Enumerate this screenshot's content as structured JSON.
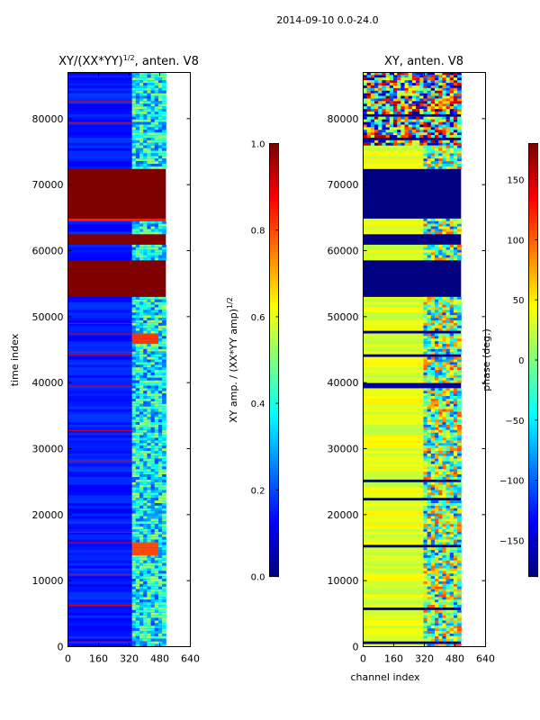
{
  "figure": {
    "suptitle": "2014-09-10 0.0-24.0"
  },
  "chart_data": [
    {
      "type": "heatmap",
      "title_main": "XY/(XX*YY)",
      "title_sup": "1/2",
      "title_tail": ", anten. V8",
      "xlabel": "",
      "ylabel": "time index",
      "xlim": [
        0,
        640
      ],
      "ylim": [
        0,
        87000
      ],
      "xticks": [
        "0",
        "160",
        "320",
        "480",
        "640"
      ],
      "yticks": [
        "0",
        "10000",
        "20000",
        "30000",
        "40000",
        "50000",
        "60000",
        "70000",
        "80000"
      ],
      "data_xmax": 512,
      "colorscale": "jet",
      "bands": [
        {
          "y0": 52800,
          "y1": 58500,
          "value": 1.0
        },
        {
          "y0": 60900,
          "y1": 62400,
          "value": 1.0
        },
        {
          "y0": 64300,
          "y1": 65000,
          "value": 0.85
        },
        {
          "y0": 65000,
          "y1": 72200,
          "value": 1.0
        }
      ],
      "bright_regions": [
        {
          "x0": 330,
          "x1": 480,
          "y0": 46000,
          "y1": 47500,
          "value": 0.82
        },
        {
          "x0": 330,
          "x1": 480,
          "y0": 14000,
          "y1": 16000,
          "value": 0.8
        }
      ],
      "colorbar": {
        "label_main": "XY amp. / (XX*YY amp)",
        "label_sup": "1/2",
        "min": 0.0,
        "max": 1.0,
        "ticks": [
          "0.0",
          "0.2",
          "0.4",
          "0.6",
          "0.8",
          "1.0"
        ]
      }
    },
    {
      "type": "heatmap",
      "title": "XY, anten. V8",
      "xlabel": "channel index",
      "ylabel": "",
      "xlim": [
        0,
        640
      ],
      "ylim": [
        0,
        87000
      ],
      "xticks": [
        "0",
        "160",
        "320",
        "480",
        "640"
      ],
      "yticks": [
        "0",
        "10000",
        "20000",
        "30000",
        "40000",
        "50000",
        "60000",
        "70000",
        "80000"
      ],
      "data_xmax": 512,
      "colorscale": "jet",
      "bands": [
        {
          "y0": 52800,
          "y1": 58500,
          "value": -180
        },
        {
          "y0": 60900,
          "y1": 62400,
          "value": -180
        },
        {
          "y0": 65000,
          "y1": 72200,
          "value": -180
        }
      ],
      "colorbar": {
        "label": "phase (deg.)",
        "min": -180,
        "max": 180,
        "ticks": [
          "−150",
          "−100",
          "−50",
          "0",
          "50",
          "100",
          "150"
        ]
      }
    }
  ]
}
